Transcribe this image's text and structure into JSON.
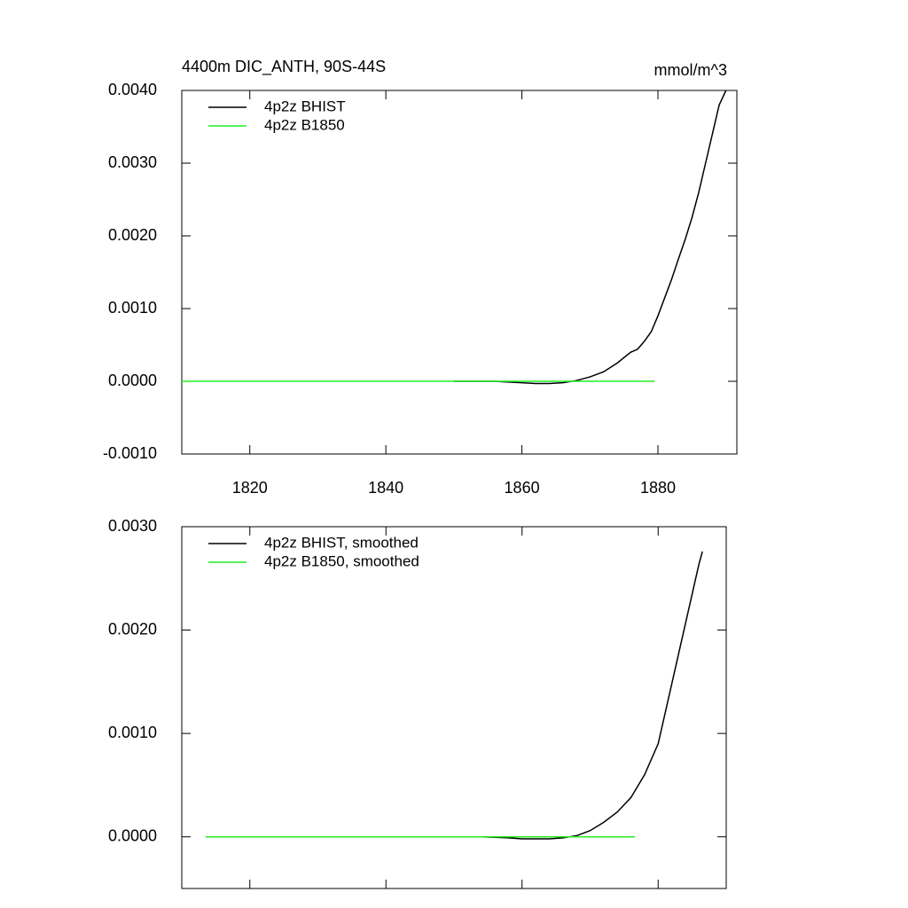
{
  "chart_data": [
    {
      "type": "line",
      "title": "4400m DIC_ANTH, 90S-44S",
      "units": "mmol/m^3",
      "xlim": [
        1810,
        1891.6
      ],
      "xticks": [
        1820,
        1840,
        1860,
        1880
      ],
      "xtick_labels": true,
      "ylim": [
        -0.001,
        0.004
      ],
      "yticks": [
        {
          "value": -0.001,
          "label": "-0.0010"
        },
        {
          "value": 0,
          "label": "0.0000"
        },
        {
          "value": 0.001,
          "label": "0.0010"
        },
        {
          "value": 0.002,
          "label": "0.0020"
        },
        {
          "value": 0.003,
          "label": "0.0030"
        },
        {
          "value": 0.004,
          "label": "0.0040"
        }
      ],
      "legend": "top-left",
      "series": [
        {
          "name": "4p2z BHIST",
          "color": "#000000",
          "x": [
            1850,
            1852,
            1854,
            1856,
            1858,
            1860,
            1862,
            1864,
            1866,
            1868,
            1870,
            1872,
            1874,
            1876,
            1877,
            1878,
            1879,
            1880,
            1881,
            1882,
            1883,
            1884,
            1885,
            1886,
            1887,
            1888,
            1889,
            1890
          ],
          "values": [
            0,
            0,
            0,
            0,
            -1e-05,
            -2e-05,
            -3e-05,
            -3e-05,
            -2e-05,
            1e-05,
            6e-05,
            0.00013,
            0.00025,
            0.0004,
            0.00044,
            0.00055,
            0.00068,
            0.0009,
            0.00115,
            0.0014,
            0.00168,
            0.00195,
            0.00225,
            0.0026,
            0.003,
            0.0034,
            0.0038,
            0.004
          ]
        },
        {
          "name": "4p2z B1850",
          "color": "#22ee22",
          "x": [
            1810,
            1820,
            1830,
            1840,
            1850,
            1860,
            1870,
            1879.5
          ],
          "values": [
            0,
            0,
            0,
            0,
            0,
            0,
            0,
            0
          ]
        }
      ]
    },
    {
      "type": "line",
      "xlim": [
        1810,
        1890
      ],
      "xticks": [
        1820,
        1840,
        1860,
        1880
      ],
      "xtick_labels": false,
      "ylim": [
        -0.0005,
        0.003
      ],
      "yticks": [
        {
          "value": 0,
          "label": "0.0000"
        },
        {
          "value": 0.001,
          "label": "0.0010"
        },
        {
          "value": 0.002,
          "label": "0.0020"
        },
        {
          "value": 0.003,
          "label": "0.0030"
        }
      ],
      "legend": "top-left",
      "series": [
        {
          "name": "4p2z BHIST, smoothed",
          "color": "#000000",
          "x": [
            1854,
            1856,
            1858,
            1860,
            1862,
            1864,
            1866,
            1868,
            1870,
            1872,
            1874,
            1876,
            1878,
            1880,
            1882,
            1884,
            1886,
            1886.5
          ],
          "values": [
            0,
            -5e-06,
            -1e-05,
            -2e-05,
            -2e-05,
            -2e-05,
            -1e-05,
            1e-05,
            6e-05,
            0.00014,
            0.00024,
            0.00038,
            0.0006,
            0.0009,
            0.00148,
            0.00206,
            0.00264,
            0.00276
          ]
        },
        {
          "name": "4p2z B1850, smoothed",
          "color": "#22ee22",
          "x": [
            1813.5,
            1820,
            1830,
            1840,
            1850,
            1860,
            1870,
            1876.6
          ],
          "values": [
            0,
            0,
            0,
            0,
            0,
            0,
            0,
            0
          ]
        }
      ]
    }
  ]
}
